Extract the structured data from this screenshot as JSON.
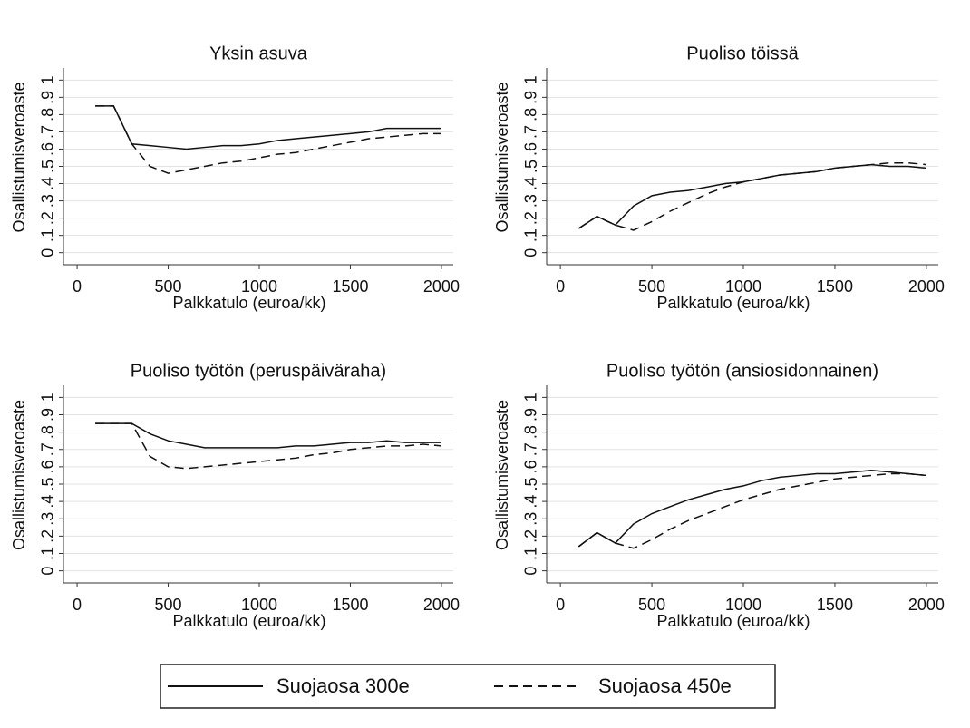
{
  "chart_data": [
    {
      "type": "line",
      "title": "Yksin asuva",
      "xlabel": "Palkkatulo (euroa/kk)",
      "ylabel": "Osallistumisveroaste",
      "x": [
        100,
        200,
        300,
        400,
        500,
        600,
        700,
        800,
        900,
        1000,
        1100,
        1200,
        1300,
        1400,
        1500,
        1600,
        1700,
        1800,
        1900,
        2000
      ],
      "series": [
        {
          "name": "Suojaosa 300e",
          "color": "#111111",
          "style": "solid",
          "values": [
            0.85,
            0.85,
            0.63,
            0.62,
            0.61,
            0.6,
            0.61,
            0.62,
            0.62,
            0.63,
            0.65,
            0.66,
            0.67,
            0.68,
            0.69,
            0.7,
            0.72,
            0.72,
            0.72,
            0.72
          ]
        },
        {
          "name": "Suojaosa 450e",
          "color": "#111111",
          "style": "dashed",
          "values": [
            0.85,
            0.85,
            0.63,
            0.5,
            0.46,
            0.48,
            0.5,
            0.52,
            0.53,
            0.55,
            0.57,
            0.58,
            0.6,
            0.62,
            0.64,
            0.66,
            0.67,
            0.68,
            0.69,
            0.69
          ]
        }
      ],
      "xlim": [
        -75,
        2065
      ],
      "ylim": [
        -0.07,
        1.07
      ],
      "xticks": [
        0,
        500,
        1000,
        1500,
        2000
      ],
      "yticks": [
        0,
        {
          "value": 0.1,
          "label": ".1"
        },
        {
          "value": 0.2,
          "label": ".2"
        },
        {
          "value": 0.3,
          "label": ".3"
        },
        {
          "value": 0.4,
          "label": ".4"
        },
        {
          "value": 0.5,
          "label": ".5"
        },
        {
          "value": 0.6,
          "label": ".6"
        },
        {
          "value": 0.7,
          "label": ".7"
        },
        {
          "value": 0.8,
          "label": ".8"
        },
        {
          "value": 0.9,
          "label": ".9"
        },
        1
      ],
      "grid": true
    },
    {
      "type": "line",
      "title": "Puoliso töissä",
      "xlabel": "Palkkatulo (euroa/kk)",
      "ylabel": "Osallistumisveroaste",
      "x": [
        100,
        200,
        300,
        400,
        500,
        600,
        700,
        800,
        900,
        1000,
        1100,
        1200,
        1300,
        1400,
        1500,
        1600,
        1700,
        1800,
        1900,
        2000
      ],
      "series": [
        {
          "color": "#111111",
          "style": "solid",
          "values": [
            0.14,
            0.21,
            0.16,
            0.27,
            0.33,
            0.35,
            0.36,
            0.38,
            0.4,
            0.41,
            0.43,
            0.45,
            0.46,
            0.47,
            0.49,
            0.5,
            0.51,
            0.5,
            0.5,
            0.49
          ]
        },
        {
          "color": "#111111",
          "style": "dashed",
          "values": [
            0.14,
            0.21,
            0.16,
            0.13,
            0.18,
            0.24,
            0.29,
            0.34,
            0.38,
            0.41,
            0.43,
            0.45,
            0.46,
            0.47,
            0.49,
            0.5,
            0.51,
            0.52,
            0.52,
            0.51
          ]
        }
      ],
      "xlim": [
        -75,
        2065
      ],
      "ylim": [
        -0.07,
        1.07
      ],
      "xticks": [
        0,
        500,
        1000,
        1500,
        2000
      ],
      "yticks": [
        0,
        {
          "value": 0.1,
          "label": ".1"
        },
        {
          "value": 0.2,
          "label": ".2"
        },
        {
          "value": 0.3,
          "label": ".3"
        },
        {
          "value": 0.4,
          "label": ".4"
        },
        {
          "value": 0.5,
          "label": ".5"
        },
        {
          "value": 0.6,
          "label": ".6"
        },
        {
          "value": 0.7,
          "label": ".7"
        },
        {
          "value": 0.8,
          "label": ".8"
        },
        {
          "value": 0.9,
          "label": ".9"
        },
        1
      ],
      "grid": true
    },
    {
      "type": "line",
      "title": "Puoliso työtön (peruspäiväraha)",
      "xlabel": "Palkkatulo (euroa/kk)",
      "ylabel": "Osallistumisveroaste",
      "x": [
        100,
        200,
        300,
        400,
        500,
        600,
        700,
        800,
        900,
        1000,
        1100,
        1200,
        1300,
        1400,
        1500,
        1600,
        1700,
        1800,
        1900,
        2000
      ],
      "series": [
        {
          "color": "#111111",
          "style": "solid",
          "values": [
            0.85,
            0.85,
            0.85,
            0.79,
            0.75,
            0.73,
            0.71,
            0.71,
            0.71,
            0.71,
            0.71,
            0.72,
            0.72,
            0.73,
            0.74,
            0.74,
            0.75,
            0.74,
            0.74,
            0.74
          ]
        },
        {
          "color": "#111111",
          "style": "dashed",
          "values": [
            0.85,
            0.85,
            0.85,
            0.66,
            0.6,
            0.59,
            0.6,
            0.61,
            0.62,
            0.63,
            0.64,
            0.65,
            0.67,
            0.68,
            0.7,
            0.71,
            0.72,
            0.72,
            0.73,
            0.72
          ]
        }
      ],
      "xlim": [
        -75,
        2065
      ],
      "ylim": [
        -0.07,
        1.07
      ],
      "xticks": [
        0,
        500,
        1000,
        1500,
        2000
      ],
      "yticks": [
        0,
        {
          "value": 0.1,
          "label": ".1"
        },
        {
          "value": 0.2,
          "label": ".2"
        },
        {
          "value": 0.3,
          "label": ".3"
        },
        {
          "value": 0.4,
          "label": ".4"
        },
        {
          "value": 0.5,
          "label": ".5"
        },
        {
          "value": 0.6,
          "label": ".6"
        },
        {
          "value": 0.7,
          "label": ".7"
        },
        {
          "value": 0.8,
          "label": ".8"
        },
        {
          "value": 0.9,
          "label": ".9"
        },
        1
      ],
      "grid": true
    },
    {
      "type": "line",
      "title": "Puoliso työtön (ansiosidonnainen)",
      "xlabel": "Palkkatulo (euroa/kk)",
      "ylabel": "Osallistumisveroaste",
      "x": [
        100,
        200,
        300,
        400,
        500,
        600,
        700,
        800,
        900,
        1000,
        1100,
        1200,
        1300,
        1400,
        1500,
        1600,
        1700,
        1800,
        1900,
        2000
      ],
      "series": [
        {
          "color": "#111111",
          "style": "solid",
          "values": [
            0.14,
            0.22,
            0.16,
            0.27,
            0.33,
            0.37,
            0.41,
            0.44,
            0.47,
            0.49,
            0.52,
            0.54,
            0.55,
            0.56,
            0.56,
            0.57,
            0.58,
            0.57,
            0.56,
            0.55
          ]
        },
        {
          "color": "#111111",
          "style": "dashed",
          "values": [
            0.14,
            0.22,
            0.16,
            0.13,
            0.18,
            0.24,
            0.29,
            0.33,
            0.37,
            0.41,
            0.44,
            0.47,
            0.49,
            0.51,
            0.53,
            0.54,
            0.55,
            0.56,
            0.56,
            0.55
          ]
        }
      ],
      "xlim": [
        -75,
        2065
      ],
      "ylim": [
        -0.07,
        1.07
      ],
      "xticks": [
        0,
        500,
        1000,
        1500,
        2000
      ],
      "yticks": [
        0,
        {
          "value": 0.1,
          "label": ".1"
        },
        {
          "value": 0.2,
          "label": ".2"
        },
        {
          "value": 0.3,
          "label": ".3"
        },
        {
          "value": 0.4,
          "label": ".4"
        },
        {
          "value": 0.5,
          "label": ".5"
        },
        {
          "value": 0.6,
          "label": ".6"
        },
        {
          "value": 0.7,
          "label": ".7"
        },
        {
          "value": 0.8,
          "label": ".8"
        },
        {
          "value": 0.9,
          "label": ".9"
        },
        1
      ],
      "grid": true
    }
  ]
}
